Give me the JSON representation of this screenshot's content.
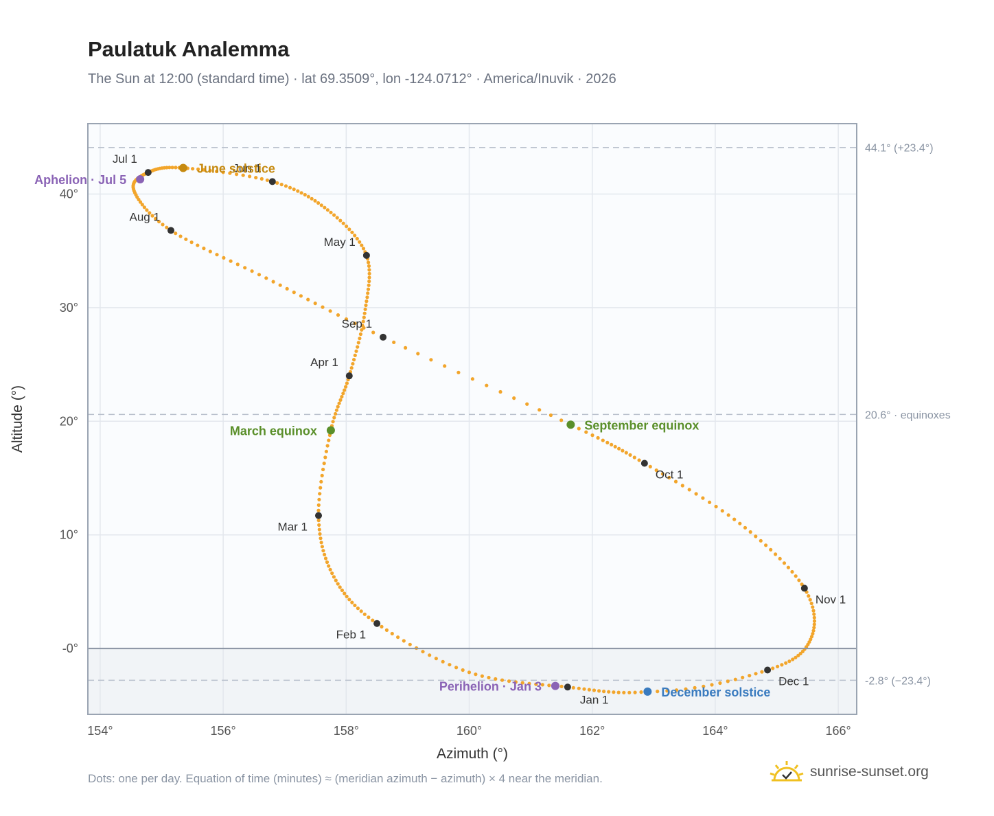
{
  "title": "Paulatuk Analemma",
  "subtitle": "The Sun at 12:00 (standard time) · lat 69.3509°, lon -124.0712° · America/Inuvik · 2026",
  "footnote": "Dots: one per day. Equation of time (minutes) ≈ (meridian azimuth − azimuth) × 4 near the meridian.",
  "brand": "sunrise-sunset.org",
  "colors": {
    "path": "#f2a52b",
    "month_marker": "#333333",
    "june_solstice": "#c68a10",
    "december_solstice": "#3a7bbf",
    "equinox": "#5a8f2a",
    "apsis": "#8a63b5",
    "grid": "#e3e7ed",
    "reference_line": "#b8c0cc",
    "plot_bg": "#fafcfe",
    "below_horizon_bg": "#f1f4f7"
  },
  "chart_data": {
    "type": "scatter",
    "xlabel": "Azimuth (°)",
    "ylabel": "Altitude (°)",
    "xlim": [
      153.8,
      166.3
    ],
    "ylim": [
      -5.8,
      46.2
    ],
    "x_ticks": [
      154,
      156,
      158,
      160,
      162,
      164,
      166
    ],
    "x_tick_labels": [
      "154°",
      "156°",
      "158°",
      "160°",
      "162°",
      "164°",
      "166°"
    ],
    "y_ticks": [
      0,
      10,
      20,
      30,
      40
    ],
    "y_tick_labels": [
      "-0°",
      "10°",
      "20°",
      "30°",
      "40°"
    ],
    "grid": true,
    "horizon_altitude": 0,
    "reference_lines": [
      {
        "y": 44.1,
        "label": "44.1° (+23.4°)"
      },
      {
        "y": 20.6,
        "label": "20.6° · equinoxes"
      },
      {
        "y": -2.8,
        "label": "-2.8° (−23.4°)"
      }
    ],
    "path_keypoints": [
      {
        "date": "Jan 1",
        "x": 161.6,
        "y": -3.4
      },
      {
        "date": "Jan 15",
        "x": 160.0,
        "y": -2.1
      },
      {
        "date": "Feb 1",
        "x": 158.5,
        "y": 2.2
      },
      {
        "date": "Feb 15",
        "x": 157.8,
        "y": 6.3
      },
      {
        "date": "Mar 1",
        "x": 157.55,
        "y": 11.7
      },
      {
        "date": "Mar 20",
        "x": 157.75,
        "y": 19.2
      },
      {
        "date": "Apr 1",
        "x": 158.05,
        "y": 24.0
      },
      {
        "date": "Apr 15",
        "x": 158.3,
        "y": 29.5
      },
      {
        "date": "May 1",
        "x": 158.33,
        "y": 34.6
      },
      {
        "date": "May 15",
        "x": 157.7,
        "y": 38.6
      },
      {
        "date": "Jun 1",
        "x": 156.8,
        "y": 41.1
      },
      {
        "date": "Jun 21",
        "x": 155.35,
        "y": 42.3
      },
      {
        "date": "Jul 1",
        "x": 154.78,
        "y": 41.9
      },
      {
        "date": "Jul 15",
        "x": 154.55,
        "y": 40.3
      },
      {
        "date": "Aug 1",
        "x": 155.15,
        "y": 36.8
      },
      {
        "date": "Aug 15",
        "x": 156.7,
        "y": 32.6
      },
      {
        "date": "Sep 1",
        "x": 158.6,
        "y": 27.4
      },
      {
        "date": "Sep 22",
        "x": 161.65,
        "y": 19.7
      },
      {
        "date": "Oct 1",
        "x": 162.85,
        "y": 16.3
      },
      {
        "date": "Oct 15",
        "x": 164.4,
        "y": 11.0
      },
      {
        "date": "Nov 1",
        "x": 165.45,
        "y": 5.3
      },
      {
        "date": "Nov 15",
        "x": 165.55,
        "y": 0.8
      },
      {
        "date": "Dec 1",
        "x": 164.85,
        "y": -1.9
      },
      {
        "date": "Dec 21",
        "x": 162.9,
        "y": -3.8
      },
      {
        "date": "Jan 1 (next)",
        "x": 161.6,
        "y": -3.4
      }
    ],
    "month_markers": [
      {
        "label": "Jan 1",
        "x": 161.6,
        "y": -3.4,
        "anchor": "start",
        "dx": 18,
        "dy": 24
      },
      {
        "label": "Feb 1",
        "x": 158.5,
        "y": 2.2,
        "anchor": "end",
        "dx": -16,
        "dy": 22
      },
      {
        "label": "Mar 1",
        "x": 157.55,
        "y": 11.7,
        "anchor": "end",
        "dx": -16,
        "dy": 22
      },
      {
        "label": "Apr 1",
        "x": 158.05,
        "y": 24.0,
        "anchor": "end",
        "dx": -16,
        "dy": -14
      },
      {
        "label": "May 1",
        "x": 158.33,
        "y": 34.6,
        "anchor": "end",
        "dx": -16,
        "dy": -14
      },
      {
        "label": "Jun 1",
        "x": 156.8,
        "y": 41.1,
        "anchor": "end",
        "dx": -16,
        "dy": -14
      },
      {
        "label": "Jul 1",
        "x": 154.78,
        "y": 41.9,
        "anchor": "end",
        "dx": -16,
        "dy": -14
      },
      {
        "label": "Aug 1",
        "x": 155.15,
        "y": 36.8,
        "anchor": "end",
        "dx": -16,
        "dy": -14
      },
      {
        "label": "Sep 1",
        "x": 158.6,
        "y": 27.4,
        "anchor": "end",
        "dx": -16,
        "dy": -14
      },
      {
        "label": "Oct 1",
        "x": 162.85,
        "y": 16.3,
        "anchor": "start",
        "dx": 16,
        "dy": 22
      },
      {
        "label": "Nov 1",
        "x": 165.45,
        "y": 5.3,
        "anchor": "start",
        "dx": 16,
        "dy": 22
      },
      {
        "label": "Dec 1",
        "x": 164.85,
        "y": -1.9,
        "anchor": "start",
        "dx": 16,
        "dy": 22
      }
    ],
    "special_events": [
      {
        "label": "June solstice",
        "x": 155.35,
        "y": 42.3,
        "color_key": "june_solstice",
        "anchor": "start",
        "dx": 20
      },
      {
        "label": "December solstice",
        "x": 162.9,
        "y": -3.8,
        "color_key": "december_solstice",
        "anchor": "start",
        "dx": 20
      },
      {
        "label": "March equinox",
        "x": 157.75,
        "y": 19.2,
        "color_key": "equinox",
        "anchor": "end",
        "dx": -20
      },
      {
        "label": "September equinox",
        "x": 161.65,
        "y": 19.7,
        "color_key": "equinox",
        "anchor": "start",
        "dx": 20
      },
      {
        "label": "Aphelion · Jul 5",
        "x": 154.65,
        "y": 41.3,
        "color_key": "apsis",
        "anchor": "end",
        "dx": -20
      },
      {
        "label": "Perihelion · Jan 3",
        "x": 161.4,
        "y": -3.3,
        "color_key": "apsis",
        "anchor": "end",
        "dx": -20
      }
    ]
  }
}
